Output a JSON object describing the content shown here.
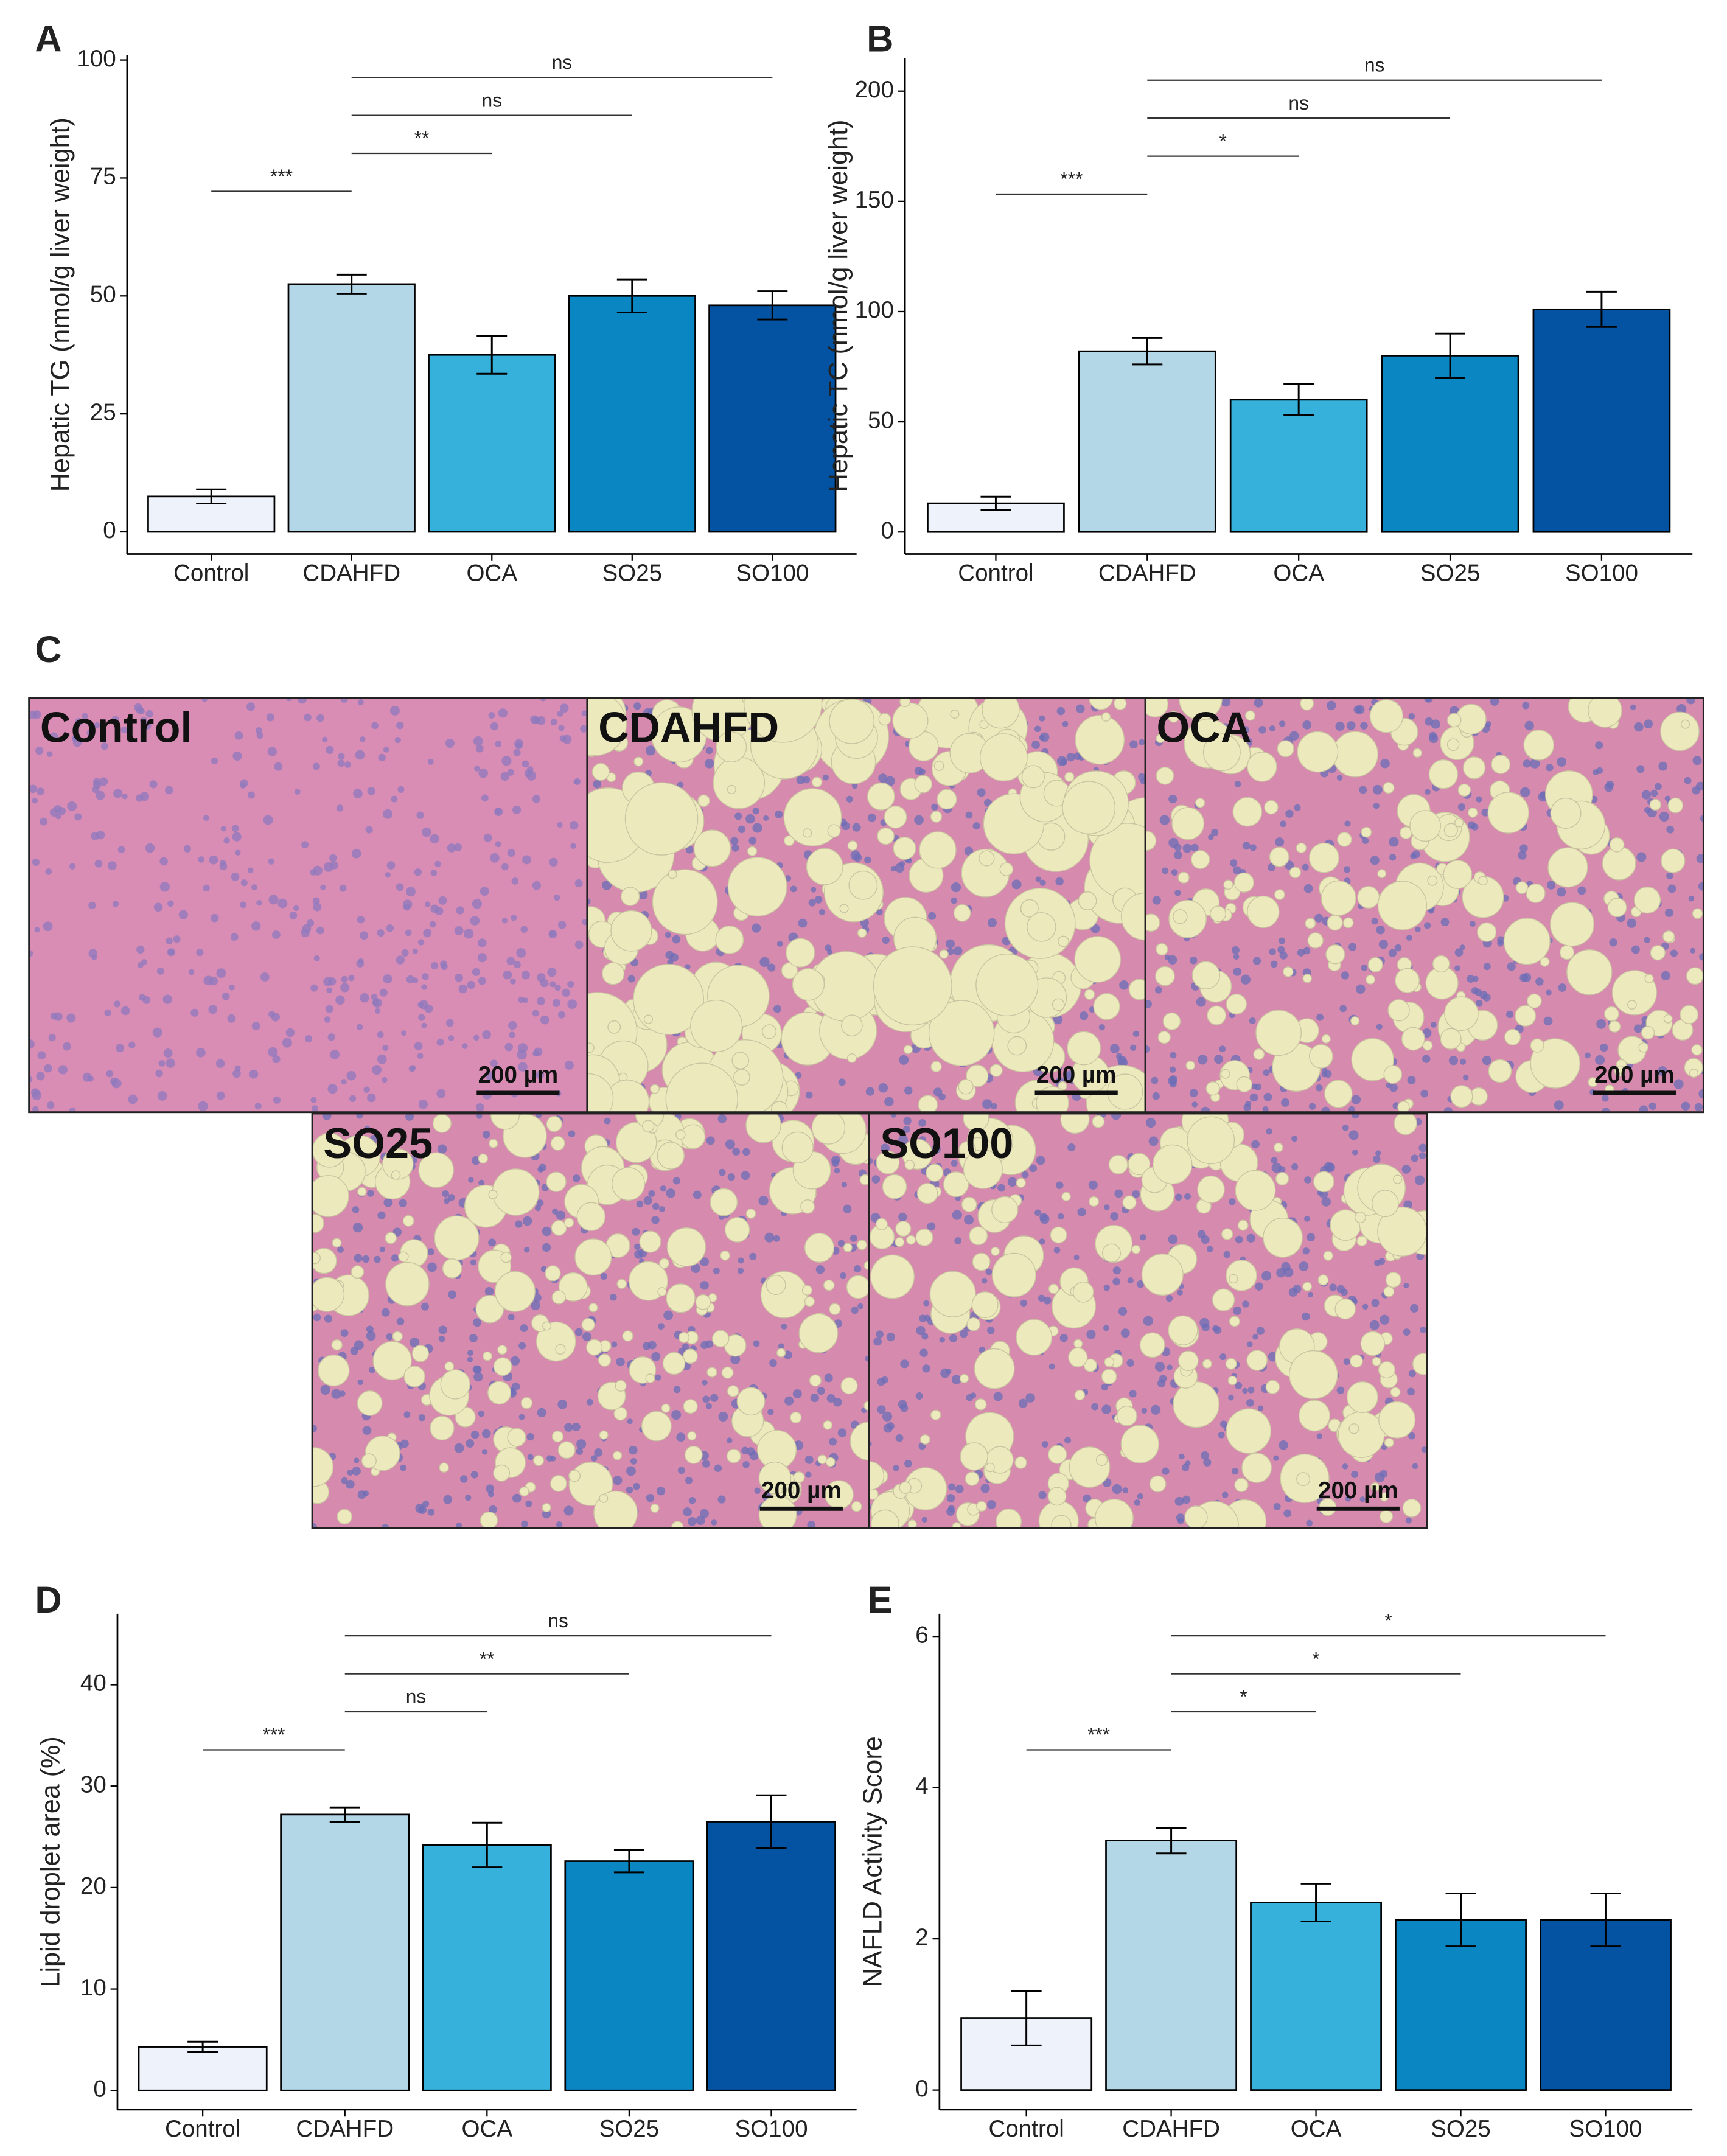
{
  "chart_data": [
    {
      "type": "bar",
      "panel": "A",
      "y_label": "Hepatic TG (nmol/g liver weight)",
      "categories": [
        "Control",
        "CDAHFD",
        "OCA",
        "SO25",
        "SO100"
      ],
      "values": [
        7.5,
        52.5,
        37.5,
        50,
        48
      ],
      "errors": [
        1.5,
        2,
        4,
        3.5,
        3
      ],
      "colors": [
        "#eef2fb",
        "#b4d7e7",
        "#35b1dc",
        "#0a86c3",
        "#0353a2"
      ],
      "ylim": [
        -4.7,
        101
      ],
      "yticks": [
        0,
        25,
        50,
        75,
        100
      ],
      "comparisons": [
        {
          "label": "***",
          "groups": [
            0,
            1
          ]
        },
        {
          "label": "**",
          "groups": [
            1,
            2
          ]
        },
        {
          "label": "ns",
          "groups": [
            1,
            3
          ]
        },
        {
          "label": "ns",
          "groups": [
            1,
            4
          ]
        }
      ]
    },
    {
      "type": "bar",
      "panel": "B",
      "y_label": "Hepatic TC (nmol/g liver weight)",
      "categories": [
        "Control",
        "CDAHFD",
        "OCA",
        "SO25",
        "SO100"
      ],
      "values": [
        13,
        82,
        60,
        80,
        101
      ],
      "errors": [
        3,
        6,
        7,
        10,
        8
      ],
      "colors": [
        "#eef2fb",
        "#b4d7e7",
        "#35b1dc",
        "#0a86c3",
        "#0353a2"
      ],
      "ylim": [
        -10,
        215
      ],
      "yticks": [
        0,
        50,
        100,
        150,
        200
      ],
      "comparisons": [
        {
          "label": "***",
          "groups": [
            0,
            1
          ]
        },
        {
          "label": "*",
          "groups": [
            1,
            2
          ]
        },
        {
          "label": "ns",
          "groups": [
            1,
            3
          ]
        },
        {
          "label": "ns",
          "groups": [
            1,
            4
          ]
        }
      ]
    },
    {
      "type": "bar",
      "panel": "D",
      "y_label": "Lipid droplet area (%)",
      "categories": [
        "Control",
        "CDAHFD",
        "OCA",
        "SO25",
        "SO100"
      ],
      "values": [
        4.3,
        27.2,
        24.2,
        22.6,
        26.5
      ],
      "errors": [
        0.5,
        0.7,
        2.2,
        1.1,
        2.6
      ],
      "colors": [
        "#eef2fb",
        "#b4d7e7",
        "#35b1dc",
        "#0a86c3",
        "#0353a2"
      ],
      "ylim": [
        -1.9,
        47
      ],
      "yticks": [
        0,
        10,
        20,
        30,
        40
      ],
      "comparisons": [
        {
          "label": "***",
          "groups": [
            0,
            1
          ]
        },
        {
          "label": "ns",
          "groups": [
            1,
            2
          ]
        },
        {
          "label": "**",
          "groups": [
            1,
            3
          ]
        },
        {
          "label": "ns",
          "groups": [
            1,
            4
          ]
        }
      ]
    },
    {
      "type": "bar",
      "panel": "E",
      "y_label": "NAFLD Activity Score",
      "categories": [
        "Control",
        "CDAHFD",
        "OCA",
        "SO25",
        "SO100"
      ],
      "values": [
        0.95,
        3.3,
        2.48,
        2.25,
        2.25
      ],
      "errors": [
        0.36,
        0.17,
        0.25,
        0.35,
        0.35
      ],
      "colors": [
        "#eef2fb",
        "#b4d7e7",
        "#35b1dc",
        "#0a86c3",
        "#0353a2"
      ],
      "ylim": [
        -0.26,
        6.3
      ],
      "yticks": [
        0,
        2,
        4,
        6
      ],
      "comparisons": [
        {
          "label": "***",
          "groups": [
            0,
            1
          ]
        },
        {
          "label": "*",
          "groups": [
            1,
            2
          ]
        },
        {
          "label": "*",
          "groups": [
            1,
            3
          ]
        },
        {
          "label": "*",
          "groups": [
            1,
            4
          ]
        }
      ]
    }
  ],
  "micrographs": {
    "panel": "C",
    "images": [
      {
        "label": "Control",
        "scale_bar": "200 µm"
      },
      {
        "label": "CDAHFD",
        "scale_bar": "200 µm"
      },
      {
        "label": "OCA",
        "scale_bar": "200 µm"
      },
      {
        "label": "SO25",
        "scale_bar": "200 µm"
      },
      {
        "label": "SO100",
        "scale_bar": "200 µm"
      }
    ]
  }
}
